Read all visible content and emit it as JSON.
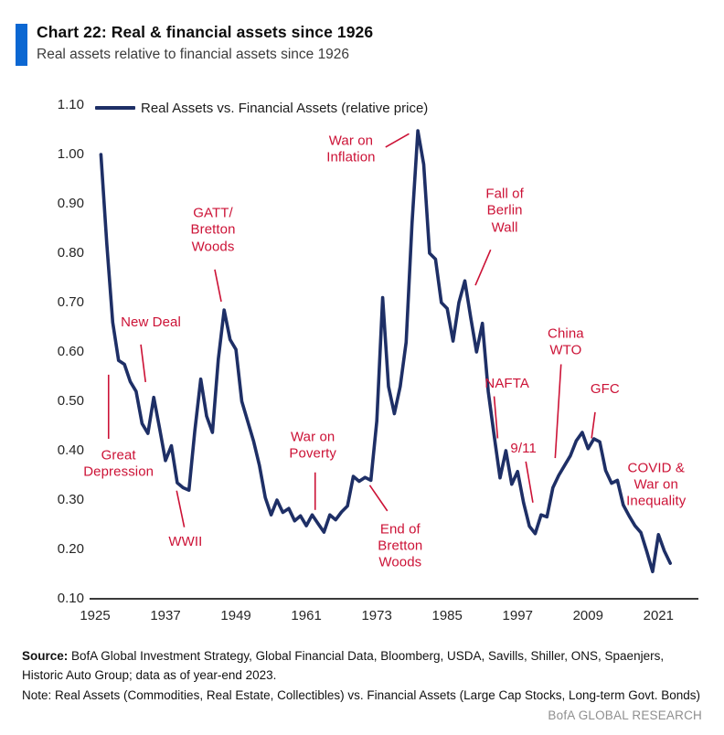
{
  "header": {
    "title": "Chart 22: Real & financial assets since 1926",
    "subtitle": "Real assets relative to financial assets since 1926"
  },
  "colors": {
    "accent_bar": "#0b67d2",
    "line": "#1e2f66",
    "annotation_red": "#cc1236",
    "axis": "#3a3a3a",
    "brand_gray": "#8f8f8f"
  },
  "footer": {
    "source_label": "Source:",
    "source_text": "BofA Global Investment Strategy, Global Financial Data, Bloomberg, USDA, Savills, Shiller, ONS, Spaenjers, Historic Auto Group; data as of year-end 2023.",
    "note_text": "Note: Real Assets (Commodities, Real Estate, Collectibles) vs. Financial Assets (Large Cap Stocks, Long-term Govt. Bonds)",
    "brand": "BofA GLOBAL RESEARCH"
  },
  "chart_data": {
    "type": "line",
    "title": "Chart 22: Real & financial assets since 1926",
    "xlabel": "",
    "ylabel": "",
    "grid": false,
    "legend_position": "top-left",
    "ylim": [
      0.1,
      1.1
    ],
    "xlim": [
      1924.4,
      2027.8
    ],
    "y_ticks": [
      "1.10",
      "1.00",
      "0.90",
      "0.80",
      "0.70",
      "0.60",
      "0.50",
      "0.40",
      "0.30",
      "0.20",
      "0.10"
    ],
    "y_tick_values": [
      1.1,
      1.0,
      0.9,
      0.8,
      0.7,
      0.6,
      0.5,
      0.4,
      0.3,
      0.2,
      0.1
    ],
    "x_ticks": [
      1925,
      1937,
      1949,
      1961,
      1973,
      1985,
      1997,
      2009,
      2021
    ],
    "series": [
      {
        "name": "Real Assets vs. Financial Assets (relative price)",
        "start_year": 1926,
        "values": [
          1.0,
          0.82,
          0.66,
          0.583,
          0.575,
          0.54,
          0.52,
          0.455,
          0.435,
          0.508,
          0.445,
          0.38,
          0.41,
          0.335,
          0.325,
          0.32,
          0.44,
          0.545,
          0.47,
          0.437,
          0.585,
          0.685,
          0.625,
          0.605,
          0.5,
          0.46,
          0.42,
          0.37,
          0.305,
          0.27,
          0.3,
          0.275,
          0.283,
          0.258,
          0.268,
          0.248,
          0.27,
          0.252,
          0.235,
          0.27,
          0.26,
          0.276,
          0.288,
          0.348,
          0.338,
          0.346,
          0.34,
          0.46,
          0.71,
          0.53,
          0.475,
          0.53,
          0.62,
          0.86,
          1.048,
          0.98,
          0.8,
          0.788,
          0.7,
          0.688,
          0.622,
          0.7,
          0.744,
          0.67,
          0.6,
          0.658,
          0.52,
          0.43,
          0.345,
          0.4,
          0.332,
          0.358,
          0.295,
          0.247,
          0.232,
          0.27,
          0.266,
          0.325,
          0.35,
          0.37,
          0.39,
          0.42,
          0.437,
          0.404,
          0.424,
          0.418,
          0.36,
          0.334,
          0.34,
          0.29,
          0.268,
          0.248,
          0.234,
          0.196,
          0.155,
          0.23,
          0.197,
          0.172
        ]
      }
    ],
    "annotations": [
      {
        "label": "Great\nDepression",
        "x": 1929.0,
        "y": 0.372,
        "pointer": [
          1927.3,
          0.554,
          1927.3,
          0.424
        ]
      },
      {
        "label": "New Deal",
        "x": 1934.5,
        "y": 0.659,
        "pointer": [
          1932.8,
          0.615,
          1933.6,
          0.539
        ]
      },
      {
        "label": "WWII",
        "x": 1940.4,
        "y": 0.215,
        "pointer": [
          1938.9,
          0.319,
          1940.2,
          0.245
        ]
      },
      {
        "label": "GATT/\nBretton\nWoods",
        "x": 1945.1,
        "y": 0.846,
        "pointer": [
          1945.4,
          0.767,
          1946.5,
          0.702
        ]
      },
      {
        "label": "War on\nPoverty",
        "x": 1962.1,
        "y": 0.409,
        "pointer": [
          1962.5,
          0.356,
          1962.5,
          0.28
        ]
      },
      {
        "label": "War on\nInflation",
        "x": 1968.6,
        "y": 1.009,
        "pointer": [
          1974.5,
          1.015,
          1978.5,
          1.042
        ]
      },
      {
        "label": "End of\nBretton\nWoods",
        "x": 1977.0,
        "y": 0.206,
        "pointer": [
          1971.8,
          0.33,
          1974.8,
          0.278
        ]
      },
      {
        "label": "Fall of\nBerlin\nWall",
        "x": 1994.8,
        "y": 0.885,
        "pointer": [
          1992.4,
          0.807,
          1989.8,
          0.735
        ]
      },
      {
        "label": "NAFTA",
        "x": 1995.2,
        "y": 0.535,
        "pointer": [
          1993.0,
          0.51,
          1993.6,
          0.425
        ]
      },
      {
        "label": "9/11",
        "x": 1998.0,
        "y": 0.404,
        "pointer": [
          1998.4,
          0.378,
          1999.6,
          0.295
        ]
      },
      {
        "label": "China\nWTO",
        "x": 2005.2,
        "y": 0.619,
        "pointer": [
          2004.4,
          0.575,
          2003.4,
          0.385
        ]
      },
      {
        "label": "GFC",
        "x": 2011.9,
        "y": 0.524,
        "pointer": [
          2010.2,
          0.478,
          2009.6,
          0.425
        ]
      },
      {
        "label": "COVID &\nWar on\nInequality",
        "x": 2020.6,
        "y": 0.33,
        "pointer": null
      }
    ]
  }
}
